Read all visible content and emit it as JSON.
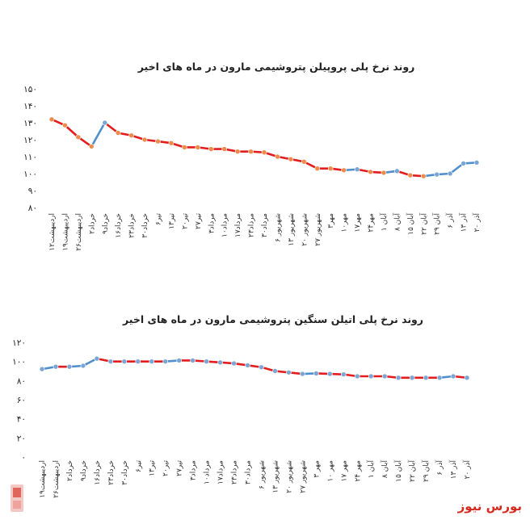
{
  "brand": {
    "name": "بورس نیوز",
    "color": "#d42a1f"
  },
  "colors": {
    "down": "#e31d1d",
    "up": "#4f8fcd",
    "marker": "#f08a4b",
    "marker_alt": "#7aa6d6"
  },
  "chart_data": [
    {
      "type": "line",
      "title": "روند نرخ پلی پروپیلن پتروشیمی مارون در ماه های اخیر",
      "categories": [
        "۱۲اردیبهشت",
        "۱۹اردیبهشت",
        "۲۶اردیبهشت",
        "۲خرداد",
        "۹خرداد",
        "۱۶خرداد",
        "۲۳خرداد",
        "۳۰خرداد",
        "۶تیر",
        "۱۳تیر",
        "۲۰تیر",
        "۲۷تیر",
        "۳مرداد",
        "۱۰مرداد",
        "۱۷مرداد",
        "۲۳مرداد",
        "۳۰مرداد",
        "۶ شهریور",
        "۱۳ شهریور",
        "۲۰ شهریور",
        "۲۷ شهریور",
        "۳مهر",
        "۱۰مهر",
        "۱۷مهر",
        "۲۴مهر",
        "۱ آبان",
        "۸ آبان",
        "۱۵ آبان",
        "۲۲ آبان",
        "۲۹ آبان",
        "۶ آذر",
        "۱۳ آذر",
        "۲۰ آذر"
      ],
      "values": [
        132,
        128.5,
        121.5,
        116,
        130,
        124,
        122.5,
        120,
        119,
        118,
        115.5,
        115.5,
        114.5,
        114.5,
        113,
        113,
        112.5,
        110,
        108.5,
        107,
        103,
        103,
        102,
        102.5,
        101,
        100.5,
        101.5,
        99,
        98.5,
        99.5,
        100,
        106,
        106.5
      ],
      "ylim": [
        80,
        150
      ],
      "yticks": [
        80,
        90,
        100,
        110,
        120,
        130,
        140,
        150
      ],
      "ytick_labels": [
        "۸۰",
        "۹۰",
        "۱۰۰",
        "۱۱۰",
        "۱۲۰",
        "۱۳۰",
        "۱۴۰",
        "۱۵۰"
      ],
      "grid": false
    },
    {
      "type": "line",
      "title": "روند نرخ پلی اتیلن سنگین پتروشیمی مارون در ماه های اخیر",
      "categories": [
        "۱۹اردیبهشت",
        "۲۶اردیبهشت",
        "۲خرداد",
        "۹خرداد",
        "۱۶خرداد",
        "۲۳خرداد",
        "۳۰خرداد",
        "۶تیر",
        "۱۳تیر",
        "۲۰تیر",
        "۲۷تیر",
        "۳مرداد",
        "۱۰مرداد",
        "۱۷مرداد",
        "۲۳مرداد",
        "۳۰مرداد",
        "۶ شهریور",
        "۱۳ شهریور",
        "۲۰ شهریور",
        "۲۷ شهریور",
        "۳ مهر",
        "۱۰ مهر",
        "۱۷ مهر",
        "۲۴ مهر",
        "۱ آبان",
        "۸ آبان",
        "۱۵ آبان",
        "۲۲ آبان",
        "۲۹ آبان",
        "۶ آذر",
        "۱۳ آذر",
        "۲۰ آذر"
      ],
      "values": [
        92,
        94.5,
        94.5,
        95.5,
        103,
        100,
        100,
        100,
        100,
        100,
        101,
        101,
        100,
        99,
        98,
        96,
        94,
        90,
        88.5,
        87,
        87.5,
        87,
        86.5,
        84.5,
        84.5,
        84.5,
        83,
        83,
        83,
        83,
        84.5,
        83
      ],
      "ylim": [
        0,
        120
      ],
      "yticks": [
        0,
        20,
        40,
        60,
        80,
        100,
        120
      ],
      "ytick_labels": [
        "۰",
        "۲۰",
        "۴۰",
        "۶۰",
        "۸۰",
        "۱۰۰",
        "۱۲۰"
      ],
      "grid": false
    }
  ]
}
